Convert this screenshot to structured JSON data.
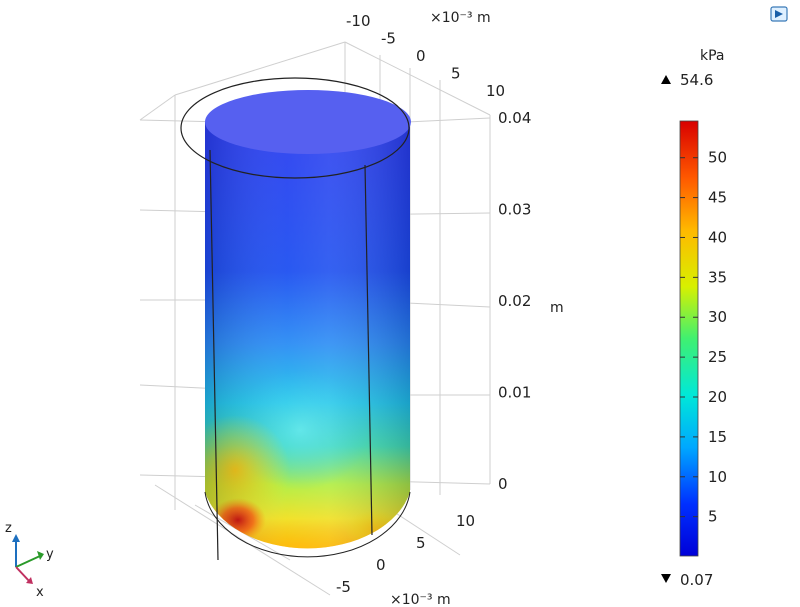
{
  "chart_data": {
    "type": "heatmap",
    "title": "",
    "surface": "3D cylinder, surface color plot",
    "colormap": "rainbow",
    "colorbar": {
      "unit": "kPa",
      "max_label": "54.6",
      "min_label": "0.07",
      "range": [
        0.07,
        54.6
      ],
      "ticks": [
        "5",
        "10",
        "15",
        "20",
        "25",
        "30",
        "35",
        "40",
        "45",
        "50"
      ]
    },
    "z_axis": {
      "unit": "m",
      "ticks": [
        "0",
        "0.01",
        "0.02",
        "0.03",
        "0.04"
      ],
      "range": [
        0,
        0.04
      ]
    },
    "x_axis_top": {
      "unit_label": "×10⁻³ m",
      "ticks": [
        "-10",
        "-5",
        "0",
        "5",
        "10"
      ]
    },
    "x_axis_bottom": {
      "unit_label": "×10⁻³ m",
      "ticks": [
        "-5",
        "0",
        "5",
        "10"
      ]
    },
    "triad": {
      "z": "z",
      "y": "y",
      "x": "x"
    },
    "colors": {
      "low": "#0a1ad8",
      "mid": "#18c8e8",
      "high": "#d81a0a"
    }
  }
}
